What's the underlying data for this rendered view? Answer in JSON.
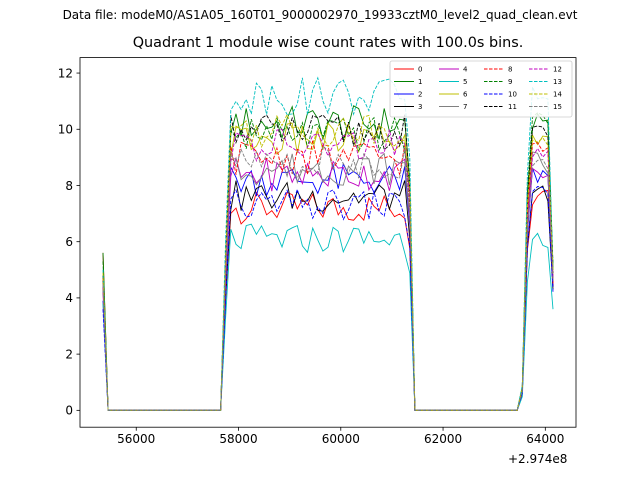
{
  "header": {
    "file_label": "Data file: modeM0/AS1A05_160T01_9000002970_19933cztM0_level2_quad_clean.evt"
  },
  "chart_data": {
    "type": "line",
    "title": "Quadrant 1 module wise count rates with 100.0s bins.",
    "xlabel": "",
    "ylabel": "",
    "x_offset_label": "+2.974e8",
    "xlim": [
      54900,
      64600
    ],
    "ylim": [
      -0.6,
      12.55
    ],
    "xticks": [
      56000,
      58000,
      60000,
      62000,
      64000
    ],
    "xtick_labels": [
      "56000",
      "58000",
      "60000",
      "62000",
      "64000"
    ],
    "yticks": [
      0,
      2,
      4,
      6,
      8,
      10,
      12
    ],
    "ytick_labels": [
      "0",
      "2",
      "4",
      "6",
      "8",
      "10",
      "12"
    ],
    "grid": false,
    "legend": {
      "placement": "top-right",
      "ncol": 4
    },
    "segments": [
      {
        "x_start": 55350,
        "x_end": 55450,
        "step": 100
      },
      {
        "x_start": 55450,
        "x_end": 57750,
        "step": 100
      },
      {
        "x_start": 57750,
        "x_end": 61350,
        "step": 100
      },
      {
        "x_start": 61350,
        "x_end": 61450,
        "step": 100
      },
      {
        "x_start": 61450,
        "x_end": 63550,
        "step": 100
      },
      {
        "x_start": 63550,
        "x_end": 64150,
        "step": 100
      }
    ],
    "series": [
      {
        "name": "0",
        "color": "#ff0000",
        "dash": "solid",
        "start": 5.6,
        "plateau": 7.2,
        "pass2": 7.6,
        "end": 4.4
      },
      {
        "name": "1",
        "color": "#008000",
        "dash": "solid",
        "start": 5.6,
        "plateau": 10.2,
        "pass2": 10.2,
        "end": 5.0
      },
      {
        "name": "2",
        "color": "#0000ff",
        "dash": "solid",
        "start": 3.9,
        "plateau": 8.2,
        "pass2": 8.4,
        "end": 4.4
      },
      {
        "name": "3",
        "color": "#000000",
        "dash": "solid",
        "start": 4.4,
        "plateau": 7.6,
        "pass2": 7.8,
        "end": 4.3
      },
      {
        "name": "4",
        "color": "#bf00bf",
        "dash": "solid",
        "start": 4.2,
        "plateau": 8.4,
        "pass2": 8.6,
        "end": 4.5
      },
      {
        "name": "5",
        "color": "#00bfbf",
        "dash": "solid",
        "start": 3.8,
        "plateau": 6.1,
        "pass2": 6.1,
        "end": 3.6
      },
      {
        "name": "6",
        "color": "#bfbf00",
        "dash": "solid",
        "start": 4.6,
        "plateau": 9.6,
        "pass2": 9.4,
        "end": 4.8
      },
      {
        "name": "7",
        "color": "#808080",
        "dash": "solid",
        "start": 4.3,
        "plateau": 8.6,
        "pass2": 8.8,
        "end": 4.6
      },
      {
        "name": "8",
        "color": "#ff0000",
        "dash": "dashed",
        "start": 4.7,
        "plateau": 9.0,
        "pass2": 9.2,
        "end": 4.5
      },
      {
        "name": "9",
        "color": "#008000",
        "dash": "dashed",
        "start": 5.3,
        "plateau": 9.8,
        "pass2": 10.4,
        "end": 5.2
      },
      {
        "name": "10",
        "color": "#0000ff",
        "dash": "dashed",
        "start": 3.6,
        "plateau": 7.3,
        "pass2": 7.7,
        "end": 4.2
      },
      {
        "name": "11",
        "color": "#000000",
        "dash": "dashed",
        "start": 4.8,
        "plateau": 9.9,
        "pass2": 10.0,
        "end": 4.9
      },
      {
        "name": "12",
        "color": "#bf00bf",
        "dash": "dashed",
        "start": 4.4,
        "plateau": 9.4,
        "pass2": 9.0,
        "end": 4.7
      },
      {
        "name": "13",
        "color": "#00bfbf",
        "dash": "dashed",
        "start": 5.0,
        "plateau": 11.2,
        "pass2": 11.2,
        "end": 5.0
      },
      {
        "name": "14",
        "color": "#bfbf00",
        "dash": "dashed",
        "start": 4.9,
        "plateau": 10.0,
        "pass2": 9.8,
        "end": 5.0
      },
      {
        "name": "15",
        "color": "#808080",
        "dash": "dashed",
        "start": 4.5,
        "plateau": 8.8,
        "pass2": 8.6,
        "end": 4.6
      }
    ]
  }
}
